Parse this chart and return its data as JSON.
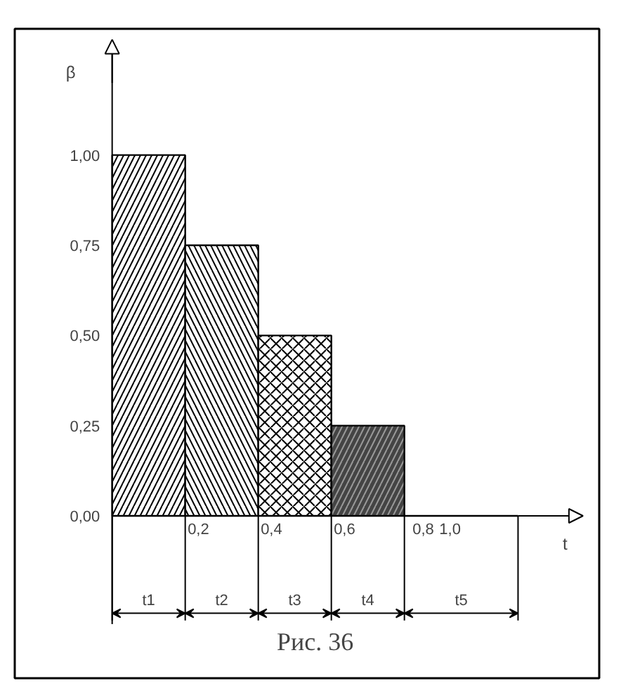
{
  "chart_data": {
    "type": "bar",
    "title": "Рис. 36",
    "xlabel": "t",
    "ylabel": "β",
    "categories": [
      "t1",
      "t2",
      "t3",
      "t4",
      "t5"
    ],
    "values": [
      1.0,
      0.75,
      0.5,
      0.25,
      0
    ],
    "colors": [
      "#ffffff",
      "#ffffff",
      "#ffffff",
      "#444444",
      "#000000"
    ],
    "ylim": [
      -0.45,
      1.35
    ],
    "yticks": [
      {
        "value": 0,
        "label": "0,00"
      },
      {
        "value": 0.25,
        "label": "0,25"
      },
      {
        "value": 0.5,
        "label": "0,50"
      },
      {
        "value": 0.75,
        "label": "0,75"
      },
      {
        "value": 1,
        "label": "1,00"
      }
    ],
    "annotations": [
      "0,2",
      "0,4",
      "0,6",
      "0,8",
      "1,0"
    ]
  }
}
